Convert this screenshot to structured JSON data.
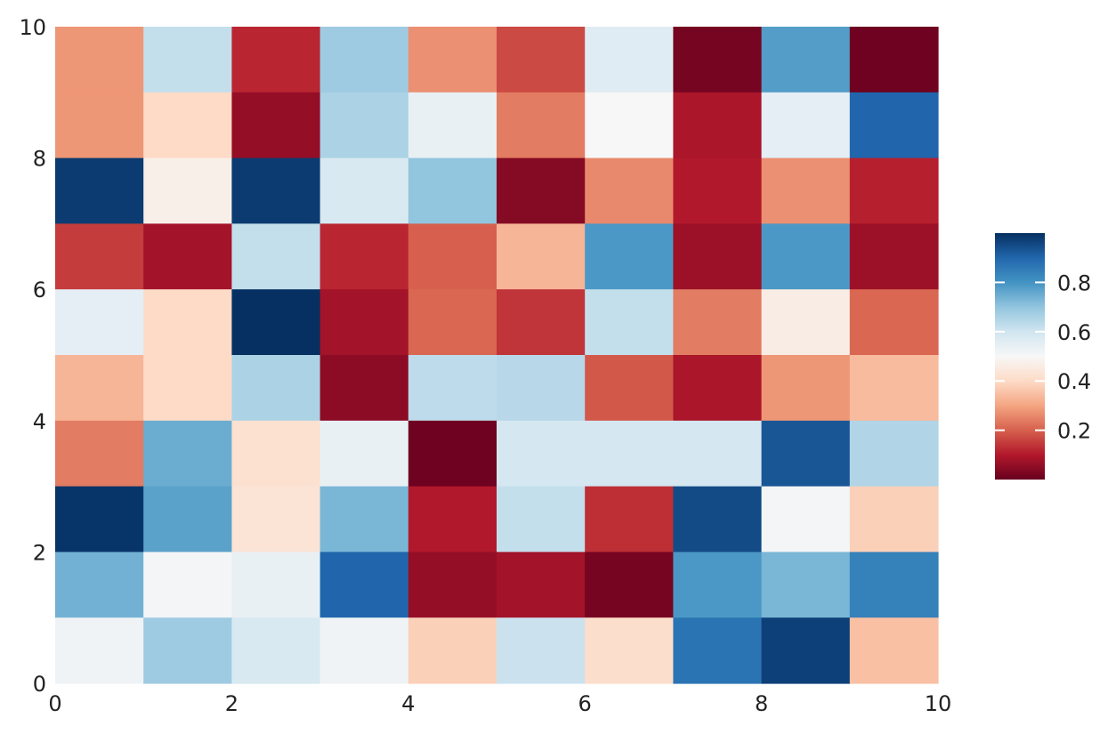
{
  "chart_data": {
    "type": "heatmap",
    "title": "",
    "xlabel": "",
    "ylabel": "",
    "xlim": [
      0,
      10
    ],
    "ylim": [
      0,
      10
    ],
    "x_ticks": [
      "0",
      "2",
      "4",
      "6",
      "8",
      "10"
    ],
    "y_ticks": [
      "0",
      "2",
      "4",
      "6",
      "8",
      "10"
    ],
    "colormap": "RdBu",
    "colorbar": {
      "range": [
        0.0,
        1.0
      ],
      "ticks": [
        "0.2",
        "0.4",
        "0.6",
        "0.8"
      ],
      "placement": "right"
    },
    "grid": false,
    "row_order": "top-to-bottom (y from 10 down to 0)",
    "values": [
      [
        0.28,
        0.62,
        0.12,
        0.68,
        0.27,
        0.17,
        0.56,
        0.02,
        0.78,
        0.01
      ],
      [
        0.28,
        0.4,
        0.06,
        0.66,
        0.54,
        0.24,
        0.5,
        0.09,
        0.55,
        0.9
      ],
      [
        0.98,
        0.47,
        0.98,
        0.58,
        0.7,
        0.04,
        0.26,
        0.1,
        0.27,
        0.11
      ],
      [
        0.15,
        0.08,
        0.62,
        0.12,
        0.2,
        0.33,
        0.79,
        0.07,
        0.79,
        0.07
      ],
      [
        0.55,
        0.4,
        1.0,
        0.08,
        0.21,
        0.14,
        0.62,
        0.24,
        0.46,
        0.21
      ],
      [
        0.33,
        0.4,
        0.66,
        0.05,
        0.63,
        0.64,
        0.19,
        0.09,
        0.28,
        0.34
      ],
      [
        0.24,
        0.75,
        0.42,
        0.54,
        0.01,
        0.59,
        0.59,
        0.59,
        0.93,
        0.65
      ],
      [
        0.99,
        0.77,
        0.43,
        0.73,
        0.1,
        0.62,
        0.13,
        0.95,
        0.51,
        0.38
      ],
      [
        0.74,
        0.51,
        0.54,
        0.9,
        0.06,
        0.08,
        0.02,
        0.79,
        0.73,
        0.84
      ],
      [
        0.52,
        0.68,
        0.58,
        0.52,
        0.38,
        0.61,
        0.41,
        0.87,
        0.97,
        0.35
      ]
    ]
  }
}
